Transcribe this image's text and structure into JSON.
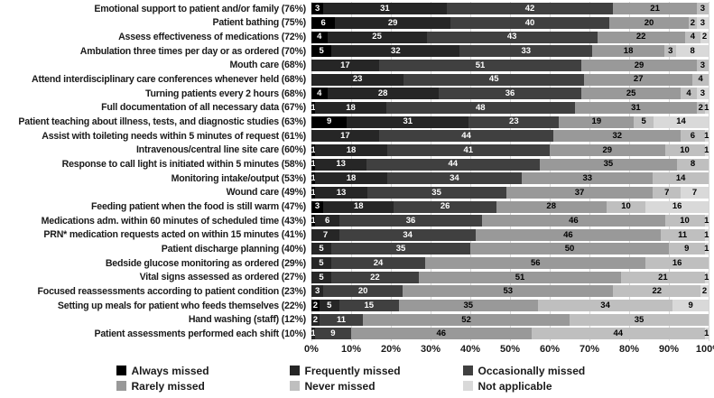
{
  "chart_data": {
    "type": "bar",
    "orientation": "horizontal",
    "stacked": true,
    "value_unit": "percent",
    "xlim": [
      0,
      100
    ],
    "grid": true,
    "legend_position": "bottom",
    "x_ticks": [
      "0%",
      "10%",
      "20%",
      "30%",
      "40%",
      "50%",
      "60%",
      "70%",
      "80%",
      "90%",
      "100%"
    ],
    "segment_order": [
      "Always missed",
      "Frequently missed",
      "Occasionally missed",
      "Rarely missed",
      "Never missed",
      "Not applicable"
    ],
    "legend": [
      {
        "label": "Always missed",
        "color": "#000000"
      },
      {
        "label": "Frequently missed",
        "color": "#262626"
      },
      {
        "label": "Occasionally missed",
        "color": "#404040"
      },
      {
        "label": "Rarely missed",
        "color": "#999999"
      },
      {
        "label": "Never missed",
        "color": "#bfbfbf"
      },
      {
        "label": "Not applicable",
        "color": "#d9d9d9"
      }
    ],
    "rows": [
      {
        "label": "Emotional support to patient and/or family (76%)",
        "values": [
          3,
          31,
          42,
          21,
          3,
          0
        ]
      },
      {
        "label": "Patient bathing (75%)",
        "values": [
          6,
          29,
          40,
          20,
          2,
          3
        ]
      },
      {
        "label": "Assess effectiveness of medications (72%)",
        "values": [
          4,
          25,
          43,
          22,
          4,
          2
        ]
      },
      {
        "label": "Ambulation three times per day or as ordered (70%)",
        "values": [
          5,
          32,
          33,
          18,
          3,
          8
        ]
      },
      {
        "label": "Mouth care (68%)",
        "values": [
          0,
          17,
          51,
          29,
          3,
          0
        ]
      },
      {
        "label": "Attend interdisciplinary care conferences whenever held (68%)",
        "values": [
          0,
          23,
          45,
          27,
          4,
          0
        ]
      },
      {
        "label": "Turning patients every 2 hours (68%)",
        "values": [
          4,
          28,
          36,
          25,
          4,
          3
        ]
      },
      {
        "label": "Full documentation of all necessary data (67%)",
        "values": [
          1,
          18,
          48,
          31,
          2,
          1
        ]
      },
      {
        "label": "Patient teaching about illness, tests, and diagnostic studies (63%)",
        "values": [
          9,
          31,
          23,
          19,
          5,
          14
        ]
      },
      {
        "label": "Assist with toileting needs within 5 minutes of request (61%)",
        "values": [
          0,
          17,
          44,
          32,
          6,
          1
        ]
      },
      {
        "label": "Intravenous/central line site care (60%)",
        "values": [
          1,
          18,
          41,
          29,
          10,
          1
        ]
      },
      {
        "label": "Response to call light is initiated within 5 minutes (58%)",
        "values": [
          1,
          13,
          44,
          35,
          8,
          0
        ]
      },
      {
        "label": "Monitoring intake/output (53%)",
        "values": [
          1,
          18,
          34,
          33,
          14,
          0
        ]
      },
      {
        "label": "Wound care (49%)",
        "values": [
          1,
          13,
          35,
          37,
          7,
          7
        ]
      },
      {
        "label": "Feeding patient when the food is still warm (47%)",
        "values": [
          3,
          18,
          26,
          28,
          10,
          16
        ]
      },
      {
        "label": "Medications adm. within 60 minutes of scheduled time (43%)",
        "values": [
          1,
          6,
          36,
          46,
          10,
          1
        ]
      },
      {
        "label": "PRN* medication requests acted on within 15 minutes (41%)",
        "values": [
          0,
          7,
          34,
          46,
          11,
          1
        ]
      },
      {
        "label": "Patient discharge planning (40%)",
        "values": [
          0,
          5,
          35,
          50,
          9,
          1
        ]
      },
      {
        "label": "Bedside glucose monitoring as ordered (29%)",
        "values": [
          0,
          5,
          24,
          56,
          16,
          0
        ]
      },
      {
        "label": "Vital signs assessed as ordered (27%)",
        "values": [
          0,
          5,
          22,
          51,
          21,
          1
        ]
      },
      {
        "label": "Focused reassessments according to patient condition (23%)",
        "values": [
          0,
          3,
          20,
          53,
          22,
          2
        ]
      },
      {
        "label": "Setting up meals for patient who feeds themselves (22%)",
        "values": [
          2,
          5,
          15,
          35,
          34,
          9
        ]
      },
      {
        "label": "Hand washing (staff) (12%)",
        "values": [
          0,
          2,
          11,
          52,
          35,
          0
        ]
      },
      {
        "label": "Patient assessments performed each shift (10%)",
        "values": [
          0,
          1,
          9,
          46,
          44,
          1
        ]
      }
    ]
  }
}
